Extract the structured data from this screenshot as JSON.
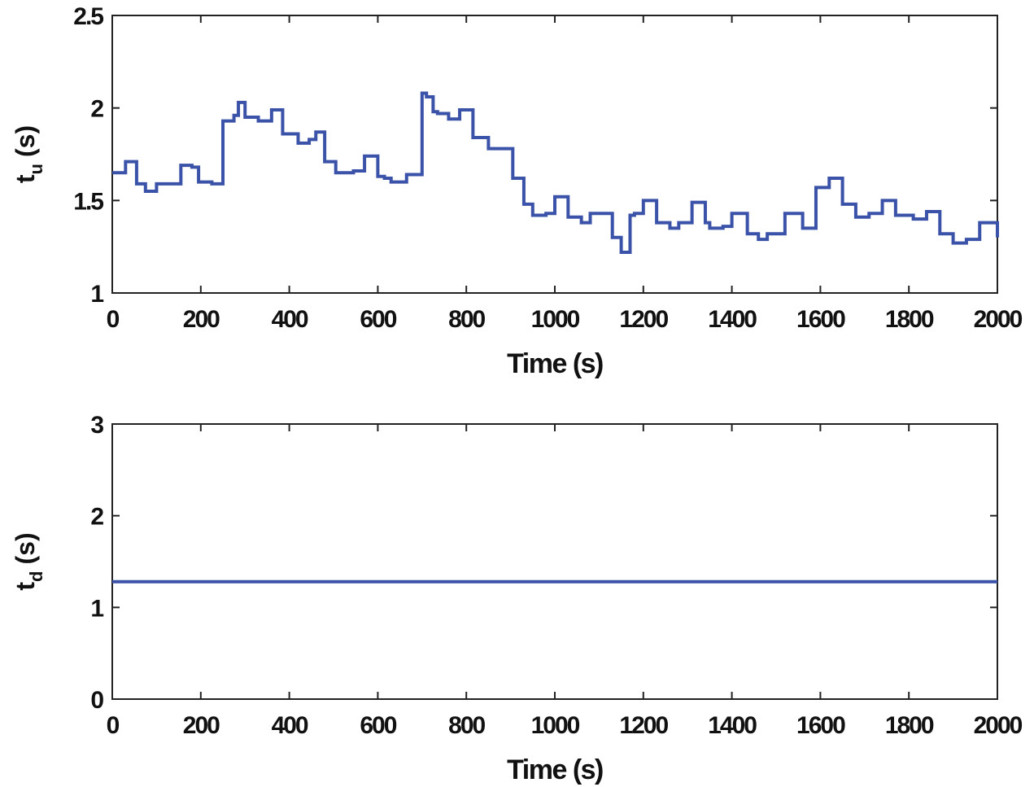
{
  "chart_data": [
    {
      "type": "line",
      "step": true,
      "xlabel": "Time (s)",
      "ylabel": {
        "main": "t",
        "sub": "u",
        "unit": "(s)"
      },
      "xlim": [
        0,
        2000
      ],
      "ylim": [
        1,
        2.5
      ],
      "xticks": [
        "0",
        "200",
        "400",
        "600",
        "800",
        "1000",
        "1200",
        "1400",
        "1600",
        "1800",
        "2000"
      ],
      "yticks": [
        "1",
        "1.5",
        "2",
        "2.5"
      ],
      "color": "#3a52a8",
      "series": [
        {
          "x": [
            0,
            30,
            55,
            75,
            100,
            130,
            155,
            180,
            195,
            225,
            240,
            250,
            275,
            285,
            300,
            330,
            345,
            360,
            375,
            385,
            400,
            420,
            445,
            460,
            475,
            480,
            490,
            505,
            525,
            545,
            560,
            570,
            585,
            600,
            615,
            630,
            650,
            665,
            690,
            695,
            700,
            710,
            725,
            735,
            760,
            785,
            795,
            815,
            835,
            840,
            850,
            870,
            885,
            900,
            905,
            915,
            930,
            950,
            955,
            980,
            1000,
            1015,
            1030,
            1060,
            1080,
            1110,
            1125,
            1130,
            1135,
            1145,
            1150,
            1170,
            1180,
            1190,
            1200,
            1220,
            1230,
            1260,
            1280,
            1300,
            1310,
            1320,
            1340,
            1350,
            1360,
            1370,
            1380,
            1400,
            1420,
            1435,
            1450,
            1460,
            1480,
            1500,
            1520,
            1540,
            1560,
            1570,
            1590,
            1610,
            1620,
            1640,
            1650,
            1665,
            1680,
            1690,
            1710,
            1720,
            1740,
            1750,
            1770,
            1790,
            1810,
            1820,
            1840,
            1855,
            1870,
            1880,
            1900,
            1915,
            1930,
            1940,
            1960,
            1980,
            2000
          ],
          "y": [
            1.65,
            1.71,
            1.59,
            1.55,
            1.59,
            1.59,
            1.69,
            1.68,
            1.6,
            1.59,
            1.59,
            1.93,
            1.96,
            2.03,
            1.95,
            1.93,
            1.93,
            1.99,
            1.99,
            1.86,
            1.86,
            1.81,
            1.83,
            1.87,
            1.87,
            1.71,
            1.71,
            1.65,
            1.65,
            1.66,
            1.66,
            1.74,
            1.74,
            1.63,
            1.62,
            1.6,
            1.6,
            1.64,
            1.64,
            1.64,
            2.08,
            2.06,
            1.98,
            1.97,
            1.94,
            1.99,
            1.99,
            1.84,
            1.84,
            1.84,
            1.78,
            1.78,
            1.78,
            1.78,
            1.62,
            1.62,
            1.48,
            1.42,
            1.42,
            1.43,
            1.52,
            1.52,
            1.41,
            1.38,
            1.43,
            1.43,
            1.43,
            1.3,
            1.3,
            1.3,
            1.22,
            1.42,
            1.43,
            1.43,
            1.5,
            1.5,
            1.38,
            1.35,
            1.38,
            1.38,
            1.49,
            1.49,
            1.38,
            1.35,
            1.35,
            1.35,
            1.36,
            1.43,
            1.43,
            1.32,
            1.32,
            1.29,
            1.32,
            1.32,
            1.43,
            1.43,
            1.35,
            1.35,
            1.57,
            1.57,
            1.62,
            1.62,
            1.48,
            1.48,
            1.41,
            1.41,
            1.43,
            1.43,
            1.5,
            1.5,
            1.42,
            1.42,
            1.4,
            1.4,
            1.44,
            1.44,
            1.32,
            1.32,
            1.27,
            1.27,
            1.29,
            1.29,
            1.38,
            1.38,
            1.3
          ]
        }
      ]
    },
    {
      "type": "line",
      "step": true,
      "xlabel": "Time (s)",
      "ylabel": {
        "main": "t",
        "sub": "d",
        "unit": "(s)"
      },
      "xlim": [
        0,
        2000
      ],
      "ylim": [
        0,
        3
      ],
      "xticks": [
        "0",
        "200",
        "400",
        "600",
        "800",
        "1000",
        "1200",
        "1400",
        "1600",
        "1800",
        "2000"
      ],
      "yticks": [
        "0",
        "1",
        "2",
        "3"
      ],
      "color": "#3a52a8",
      "series": [
        {
          "x": [
            0,
            2000
          ],
          "y": [
            1.28,
            1.28
          ]
        }
      ]
    }
  ]
}
